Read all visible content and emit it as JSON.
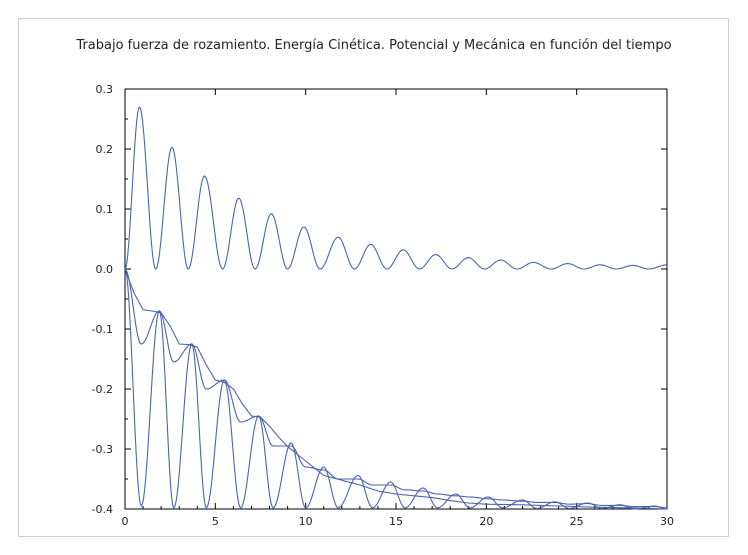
{
  "chart_data": {
    "type": "line",
    "title": "Trabajo fuerza de rozamiento. Energía Cinética. Potencial y Mecánica en función del tiempo",
    "xlabel": "",
    "ylabel": "",
    "xlim": [
      0,
      30
    ],
    "ylim": [
      -0.4,
      0.3
    ],
    "xticks": [
      0,
      5,
      10,
      15,
      20,
      25,
      30
    ],
    "yticks": [
      -0.4,
      -0.3,
      -0.2,
      -0.1,
      0.0,
      0.1,
      0.2,
      0.3
    ],
    "ytick_labels": [
      "-0.4",
      "-0.3",
      "-0.2",
      "-0.1",
      "0.0",
      "0.1",
      "0.2",
      "0.3"
    ],
    "grid": false,
    "line_color": "#4a64b0",
    "series": [
      {
        "peaks_t": [
          0.0,
          0.8,
          2.6,
          4.4,
          6.3,
          8.1,
          9.9,
          11.8,
          13.6,
          15.4,
          17.2,
          19.0,
          20.8,
          22.6,
          24.5,
          26.3,
          28.1,
          30.0
        ],
        "peaks_v": [
          0.0,
          0.27,
          0.203,
          0.155,
          0.118,
          0.092,
          0.07,
          0.053,
          0.041,
          0.032,
          0.024,
          0.019,
          0.015,
          0.011,
          0.009,
          0.007,
          0.006,
          0.007
        ],
        "troughs_t": [
          1.7,
          3.5,
          5.4,
          7.2,
          9.0,
          10.8,
          12.7,
          14.5,
          16.3,
          18.1,
          19.9,
          21.7,
          23.6,
          25.4,
          27.2,
          29.0
        ],
        "troughs_v": [
          0.0,
          0.0,
          0.0,
          0.0,
          0.0,
          0.0,
          0.0,
          0.0,
          0.0,
          0.0,
          0.0,
          0.0,
          0.0,
          0.0,
          0.0,
          0.0
        ]
      },
      {
        "x": [
          0.0,
          0.5,
          1.0,
          1.5,
          2.0,
          2.5,
          3.0,
          3.5,
          4.0,
          4.5,
          5.0,
          5.5,
          6.0,
          6.5,
          7.0,
          7.5,
          8.0,
          8.5,
          9.0,
          10.0,
          11.0,
          12.0,
          13.0,
          14.0,
          15.0,
          16.0,
          17.0,
          18.0,
          19.0,
          20.0,
          22.0,
          24.0,
          26.0,
          28.0,
          30.0
        ],
        "y": [
          0.0,
          -0.04,
          -0.068,
          -0.07,
          -0.073,
          -0.095,
          -0.125,
          -0.126,
          -0.13,
          -0.16,
          -0.185,
          -0.189,
          -0.2,
          -0.225,
          -0.245,
          -0.247,
          -0.262,
          -0.28,
          -0.296,
          -0.32,
          -0.344,
          -0.352,
          -0.36,
          -0.37,
          -0.375,
          -0.378,
          -0.381,
          -0.386,
          -0.39,
          -0.392,
          -0.393,
          -0.395,
          -0.397,
          -0.398,
          -0.4
        ]
      },
      {
        "peaks_t": [
          0.0,
          1.9,
          3.7,
          5.5,
          7.4,
          9.2,
          11.0,
          12.9,
          14.7,
          16.5,
          18.3,
          20.1,
          22.0,
          23.8,
          25.6,
          27.4,
          29.3
        ],
        "peaks_v": [
          0.0,
          -0.07,
          -0.125,
          -0.185,
          -0.245,
          -0.29,
          -0.33,
          -0.344,
          -0.355,
          -0.365,
          -0.375,
          -0.38,
          -0.385,
          -0.388,
          -0.39,
          -0.393,
          -0.395
        ],
        "troughs_t": [
          0.9,
          2.7,
          4.5,
          6.4,
          8.2,
          10.0,
          11.8,
          13.7,
          15.5,
          17.3,
          19.1,
          20.9,
          22.8,
          24.6,
          26.4,
          28.2,
          30.0
        ],
        "troughs_v": [
          -0.395,
          -0.398,
          -0.398,
          -0.398,
          -0.398,
          -0.398,
          -0.398,
          -0.398,
          -0.398,
          -0.398,
          -0.398,
          -0.398,
          -0.399,
          -0.399,
          -0.399,
          -0.4,
          -0.4
        ]
      },
      {
        "peaks_t": [
          0.0,
          1.9,
          3.7,
          5.5,
          7.4,
          9.2,
          11.0,
          12.9,
          14.7,
          16.5,
          18.3,
          20.1,
          22.0,
          23.8,
          25.6,
          27.4,
          29.3
        ],
        "peaks_v": [
          0.0,
          -0.07,
          -0.125,
          -0.185,
          -0.245,
          -0.295,
          -0.335,
          -0.35,
          -0.36,
          -0.37,
          -0.378,
          -0.383,
          -0.387,
          -0.389,
          -0.391,
          -0.394,
          -0.396
        ],
        "troughs_t": [
          0.9,
          2.7,
          4.5,
          6.4,
          8.2,
          10.0,
          11.8,
          13.7,
          15.5,
          17.3,
          19.1,
          20.9,
          22.8,
          24.6,
          26.4,
          28.2,
          30.0
        ],
        "troughs_v": [
          -0.125,
          -0.155,
          -0.2,
          -0.255,
          -0.295,
          -0.33,
          -0.35,
          -0.36,
          -0.368,
          -0.375,
          -0.38,
          -0.385,
          -0.389,
          -0.392,
          -0.394,
          -0.396,
          -0.398
        ]
      }
    ]
  }
}
